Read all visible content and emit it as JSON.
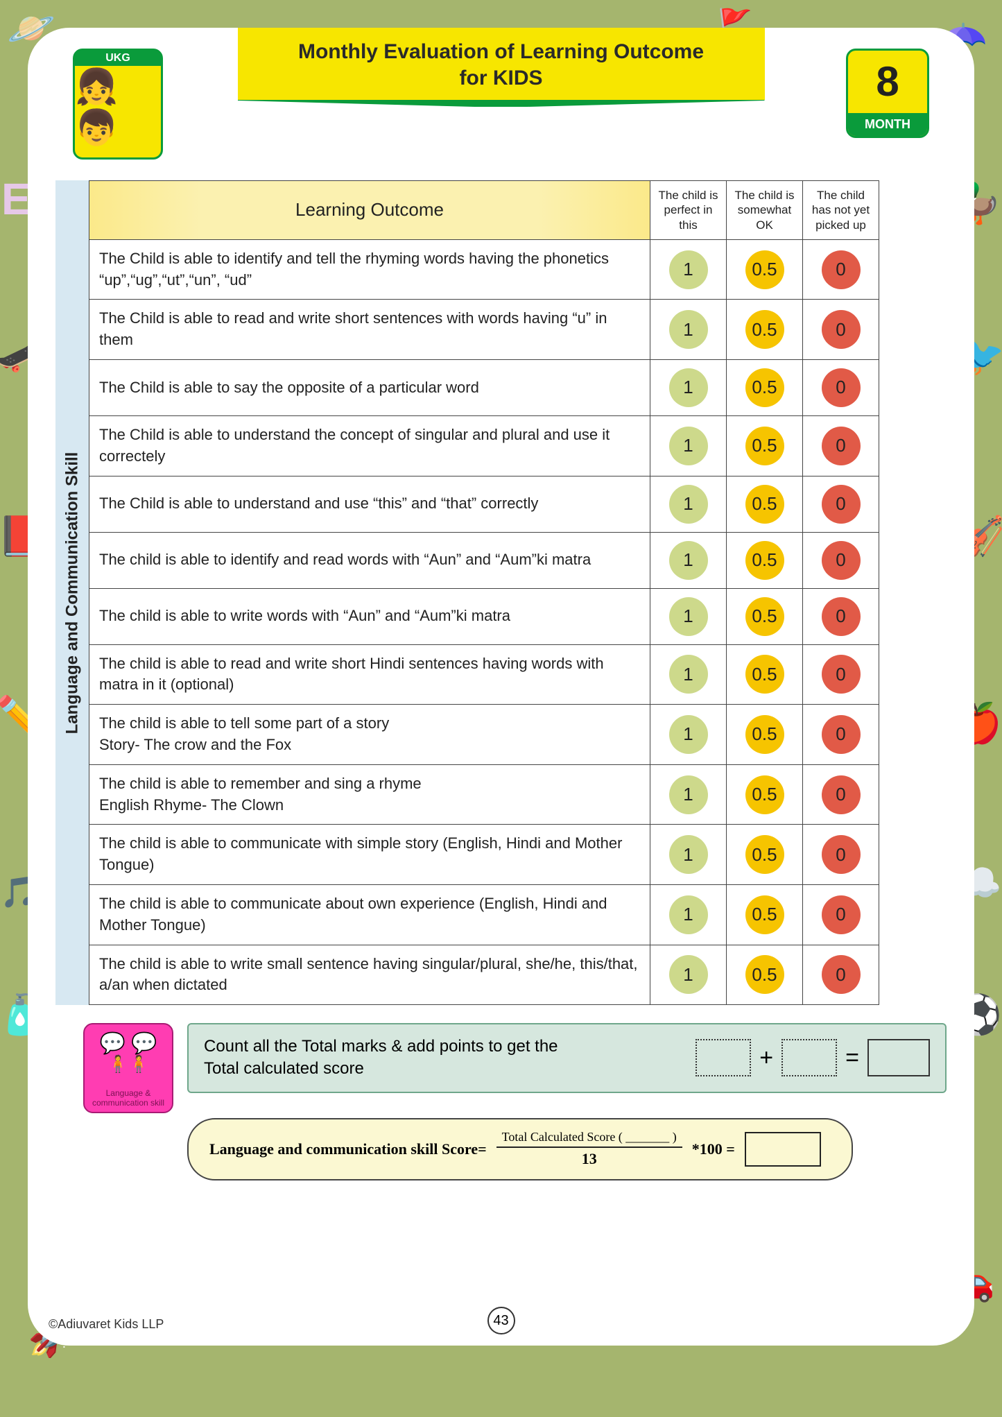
{
  "header": {
    "title_line1": "Monthly Evaluation of Learning Outcome",
    "title_line2": "for KIDS",
    "grade_badge": "UKG",
    "month_number": "8",
    "month_label": "MONTH"
  },
  "colors": {
    "page_bg": "#a5b56e",
    "banner_bg": "#f7e600",
    "banner_stripe": "#0a9b3b",
    "bubble_green": "#cdd98b",
    "bubble_yellow": "#f6c400",
    "bubble_red": "#e15a47",
    "totals_bg": "#d6e7de",
    "formula_bg": "#fbf8d2",
    "side_bg": "#d7e8f2"
  },
  "section_label": "Language and Communication Skill",
  "table": {
    "header_main": "Learning Outcome",
    "rating_headers": [
      "The child is perfect in this",
      "The child is somewhat OK",
      "The child has not yet picked up"
    ],
    "rating_values": [
      "1",
      "0.5",
      "0"
    ],
    "rows": [
      "The Child is able to identify and tell the rhyming words having the phonetics “up”,“ug”,“ut”,“un”, “ud”",
      "The Child is able to read and write short sentences with words having “u” in them",
      "The Child is able to say the opposite of a particular word",
      "The Child is able to understand the concept of singular and plural and use it correctely",
      "The Child is able to understand and use “this” and “that” correctly",
      "The child is able to identify and read words with “Aun” and “Aum”ki matra",
      "The child is able to write words with “Aun” and “Aum”ki matra",
      "The child is able to read and write short Hindi sentences having words with matra in it (optional)",
      "The child is able to tell some part of a story\nStory- The crow and the Fox",
      "The child is able to remember and sing a rhyme\nEnglish Rhyme- The Clown",
      "The child is able to communicate with simple story (English, Hindi and Mother Tongue)",
      "The child is able to communicate about own experience (English, Hindi and Mother Tongue)",
      "The child is able to write small sentence having singular/plural, she/he, this/that, a/an when dictated"
    ]
  },
  "totals": {
    "instruction": "Count all the Total marks & add points to get the Total calculated score",
    "plus": "+",
    "equals": "="
  },
  "formula": {
    "label": "Language and communication skill Score=",
    "numerator": "Total Calculated Score ( _______ )",
    "denominator": "13",
    "multiplier": "*100 ="
  },
  "skill_card_label": "Language & communication skill",
  "page_number": "43",
  "copyright": "©Adiuvaret Kids LLP",
  "doodles": {
    "planet": "🪐",
    "umbrella": "☂️",
    "duck": "🦆",
    "bird": "🐦",
    "violin": "🎻",
    "apple": "🍎",
    "cloud": "☁️",
    "ball": "⚽",
    "car": "🚗",
    "rocket": "🚀",
    "glue": "🧴",
    "music": "🎵",
    "pencil": "✏️",
    "book": "📕",
    "skateboard": "🛹",
    "letter_e": "E",
    "flag": "🚩"
  }
}
